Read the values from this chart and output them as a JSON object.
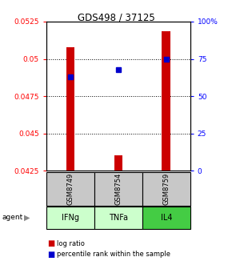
{
  "title": "GDS498 / 37125",
  "samples": [
    "GSM8749",
    "GSM8754",
    "GSM8759"
  ],
  "agents": [
    "IFNg",
    "TNFa",
    "IL4"
  ],
  "log_ratio": [
    0.0508,
    0.04355,
    0.05185
  ],
  "percentile": [
    0.63,
    0.68,
    0.745
  ],
  "bar_base": 0.0425,
  "ylim_left": [
    0.0425,
    0.0525
  ],
  "ylim_right": [
    0.0,
    1.0
  ],
  "yticks_left": [
    0.0425,
    0.045,
    0.0475,
    0.05,
    0.0525
  ],
  "yticks_left_labels": [
    "0.0425",
    "0.045",
    "0.0475",
    "0.05",
    "0.0525"
  ],
  "yticks_right": [
    0.0,
    0.25,
    0.5,
    0.75,
    1.0
  ],
  "yticks_right_labels": [
    "0",
    "25",
    "50",
    "75",
    "100%"
  ],
  "bar_color": "#cc0000",
  "dot_color": "#0000cc",
  "sample_box_color": "#c8c8c8",
  "agent_colors": [
    "#ccffcc",
    "#ccffcc",
    "#44cc44"
  ],
  "bar_width": 0.18
}
